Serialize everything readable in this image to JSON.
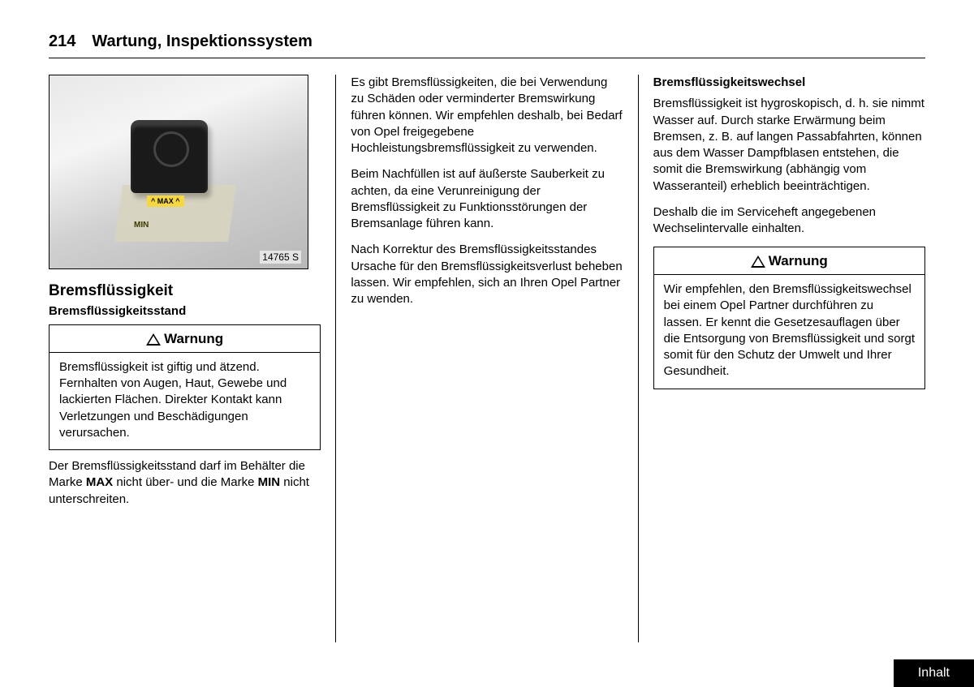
{
  "page": {
    "number": "214",
    "title": "Wartung, Inspektionssystem"
  },
  "illustration": {
    "tag_max": "^ MAX ^",
    "tag_min": "MIN",
    "number": "14765 S"
  },
  "col1": {
    "heading": "Bremsflüssigkeit",
    "subheading": "Bremsflüssigkeitsstand",
    "warning_label": "Warnung",
    "warning_body": "Bremsflüssigkeit ist giftig und ätzend. Fernhalten von Augen, Haut, Gewebe und lackierten Flächen. Direkter Kontakt kann Verletzungen und Beschädigungen verursachen.",
    "para_after_pre": "Der Bremsflüssigkeitsstand darf im Behälter die Marke ",
    "para_after_max": "MAX",
    "para_after_mid": " nicht über- und die Marke ",
    "para_after_min": "MIN",
    "para_after_post": " nicht unterschreiten."
  },
  "col2": {
    "p1": "Es gibt Bremsflüssigkeiten, die bei Verwendung zu Schäden oder verminderter Bremswirkung führen können. Wir empfehlen deshalb, bei Bedarf von Opel freigegebene Hochleistungsbremsflüssigkeit zu verwenden.",
    "p2": "Beim Nachfüllen ist auf äußerste Sauberkeit zu achten, da eine Verunreinigung der Bremsflüssigkeit zu Funktionsstörungen der Bremsanlage führen kann.",
    "p3": "Nach Korrektur des Bremsflüssigkeitsstandes Ursache für den Bremsflüssigkeitsverlust beheben lassen. Wir empfehlen, sich an Ihren Opel Partner zu wenden."
  },
  "col3": {
    "subheading": "Bremsflüssigkeitswechsel",
    "p1": "Bremsflüssigkeit ist hygroskopisch, d. h. sie nimmt Wasser auf. Durch starke Erwärmung beim Bremsen, z. B. auf langen Passabfahrten, können aus dem Wasser Dampfblasen entstehen, die somit die Bremswirkung (abhängig vom Wasseranteil) erheblich beeinträchtigen.",
    "p2": "Deshalb die im Serviceheft angegebenen Wechselintervalle einhalten.",
    "warning_label": "Warnung",
    "warning_body": "Wir empfehlen, den Bremsflüssigkeitswechsel bei einem Opel Partner durchführen zu lassen. Er kennt die Gesetzesauflagen über die Entsorgung von Bremsflüssigkeit und sorgt somit für den Schutz der Umwelt und Ihrer Gesundheit."
  },
  "footer": {
    "inhalt": "Inhalt"
  }
}
